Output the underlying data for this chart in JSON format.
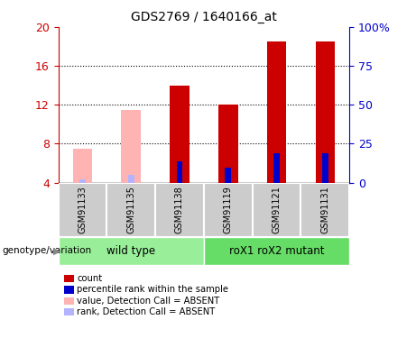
{
  "title": "GDS2769 / 1640166_at",
  "samples": [
    "GSM91133",
    "GSM91135",
    "GSM91138",
    "GSM91119",
    "GSM91121",
    "GSM91131"
  ],
  "absent_mask": [
    true,
    true,
    false,
    false,
    false,
    false
  ],
  "value_heights": [
    7.5,
    11.5,
    14.0,
    12.0,
    18.5,
    18.5
  ],
  "rank_heights": [
    4.35,
    4.75,
    6.2,
    5.5,
    7.0,
    7.0
  ],
  "ylim_left": [
    4,
    20
  ],
  "ylim_right": [
    0,
    100
  ],
  "yticks_left": [
    4,
    8,
    12,
    16,
    20
  ],
  "yticks_right": [
    0,
    25,
    50,
    75,
    100
  ],
  "ytick_labels_right": [
    "0",
    "25",
    "50",
    "75",
    "100%"
  ],
  "color_red": "#cc0000",
  "color_blue": "#0000cc",
  "color_pink": "#ffb3b3",
  "color_lightblue": "#b3b3ff",
  "color_green_wt": "#99ee99",
  "color_green_mut": "#66dd66",
  "group_labels": [
    "wild type",
    "roX1 roX2 mutant"
  ],
  "axis_left_color": "#cc0000",
  "axis_right_color": "#0000cc",
  "legend_items": [
    {
      "label": "count",
      "color": "#cc0000"
    },
    {
      "label": "percentile rank within the sample",
      "color": "#0000cc"
    },
    {
      "label": "value, Detection Call = ABSENT",
      "color": "#ffb3b3"
    },
    {
      "label": "rank, Detection Call = ABSENT",
      "color": "#b3b3ff"
    }
  ],
  "bar_width": 0.4,
  "rank_bar_width": 0.13,
  "grid_lines": [
    8,
    12,
    16
  ]
}
